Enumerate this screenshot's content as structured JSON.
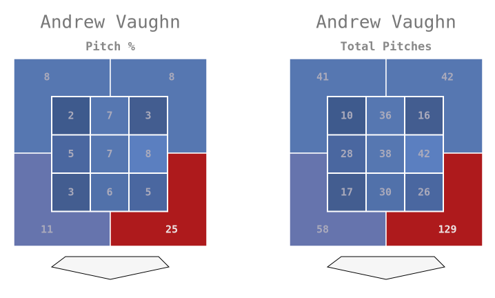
{
  "panels": [
    {
      "title": "Andrew Vaughn",
      "subtitle": "Pitch %",
      "outer": [
        8,
        8,
        11,
        25
      ],
      "outer_colors": [
        "#5677b1",
        "#5677b1",
        "#6674ad",
        "#ae1a1c"
      ],
      "inner": [
        [
          2,
          7,
          3
        ],
        [
          5,
          7,
          8
        ],
        [
          3,
          6,
          5
        ]
      ],
      "inner_colors": [
        [
          "#3e5a8d",
          "#5677b1",
          "#435d90"
        ],
        [
          "#4a67a0",
          "#5677b1",
          "#5b7fc0"
        ],
        [
          "#435d90",
          "#5171aa",
          "#4a67a0"
        ]
      ]
    },
    {
      "title": "Andrew Vaughn",
      "subtitle": "Total Pitches",
      "outer": [
        41,
        42,
        58,
        129
      ],
      "outer_colors": [
        "#5677b1",
        "#5677b1",
        "#6674ad",
        "#ae1a1c"
      ],
      "inner": [
        [
          10,
          36,
          16
        ],
        [
          28,
          38,
          42
        ],
        [
          17,
          30,
          26
        ]
      ],
      "inner_colors": [
        [
          "#3e5a8d",
          "#5677b1",
          "#435d90"
        ],
        [
          "#4a67a0",
          "#5677b1",
          "#5b7fc0"
        ],
        [
          "#435d90",
          "#5171aa",
          "#4a67a0"
        ]
      ]
    }
  ]
}
